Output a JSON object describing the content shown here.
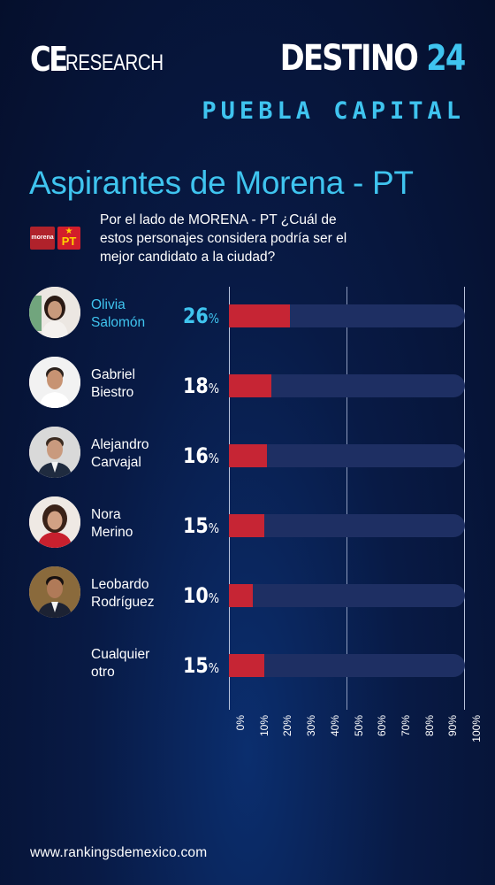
{
  "header": {
    "brand_left_ce": "CE",
    "brand_left_research": "RESEARCH",
    "brand_right_word": "DESTINO",
    "brand_right_number": "24",
    "subtitle": "PUEBLA CAPITAL"
  },
  "title": "Aspirantes de Morena - PT",
  "party_logos": [
    "morena",
    "PT"
  ],
  "question": "Por el lado de MORENA - PT ¿Cuál de estos personajes considera podría ser el mejor candidato a la ciudad?",
  "chart_data": {
    "type": "bar",
    "orientation": "horizontal",
    "categories": [
      "Olivia Salomón",
      "Gabriel Biestro",
      "Alejandro Carvajal",
      "Nora Merino",
      "Leobardo Rodríguez",
      "Cualquier otro"
    ],
    "values": [
      26,
      18,
      16,
      15,
      10,
      15
    ],
    "value_unit": "%",
    "xlim": [
      0,
      100
    ],
    "x_ticks": [
      "0%",
      "10%",
      "20%",
      "30%",
      "40%",
      "50%",
      "60%",
      "70%",
      "80%",
      "90%",
      "100%"
    ],
    "highlight_category": "Olivia Salomón",
    "colors": {
      "bar": "#c62534",
      "track": "#1e2f63",
      "highlight_text": "#3fc4ef"
    }
  },
  "rows": [
    {
      "name_line1": "Olivia",
      "name_line2": "Salomón",
      "pct": "26",
      "unit": "%",
      "has_photo": true,
      "highlight": true
    },
    {
      "name_line1": "Gabriel",
      "name_line2": "Biestro",
      "pct": "18",
      "unit": "%",
      "has_photo": true,
      "highlight": false
    },
    {
      "name_line1": "Alejandro",
      "name_line2": "Carvajal",
      "pct": "16",
      "unit": "%",
      "has_photo": true,
      "highlight": false
    },
    {
      "name_line1": "Nora",
      "name_line2": "Merino",
      "pct": "15",
      "unit": "%",
      "has_photo": true,
      "highlight": false
    },
    {
      "name_line1": "Leobardo",
      "name_line2": "Rodríguez",
      "pct": "10",
      "unit": "%",
      "has_photo": true,
      "highlight": false
    },
    {
      "name_line1": "Cualquier",
      "name_line2": "otro",
      "pct": "15",
      "unit": "%",
      "has_photo": false,
      "highlight": false
    }
  ],
  "footer": "www.rankingsdemexico.com",
  "colors": {
    "accent": "#3fc4ef",
    "background": "#081a45"
  }
}
